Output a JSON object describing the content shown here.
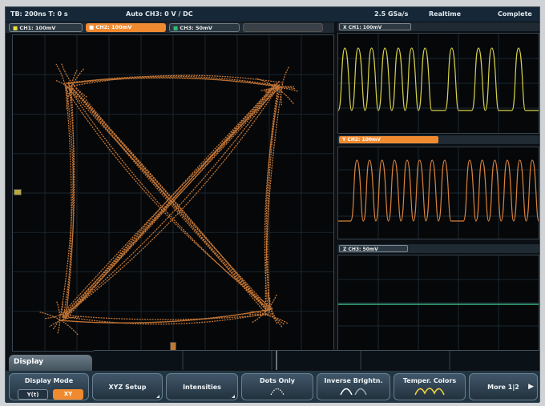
{
  "statusbar": {
    "timebase": "TB: 200ns  T: 0 s",
    "trigger": "Auto   CH3: 0 V  / DC",
    "samplerate": "2.5 GSa/s",
    "mode": "Realtime",
    "state": "Complete"
  },
  "channel_tabs": [
    {
      "label": "CH1: 100mV",
      "color": "#f0e040"
    },
    {
      "label": "CH2: 100mV",
      "color": "#f08a30"
    },
    {
      "label": "CH3: 50mV",
      "color": "#30c070"
    },
    {
      "label": "",
      "color": "#555555"
    }
  ],
  "panels": [
    {
      "label": "X   CH1: 100mV",
      "color": "#e8e040"
    },
    {
      "label": "Y   CH2: 100mV",
      "color": "#f08a30"
    },
    {
      "label": "Z   CH3: 50mV",
      "color": "#3ab080"
    }
  ],
  "menu": {
    "title": "Display",
    "display_mode": {
      "label": "Display Mode",
      "options": [
        "Y(t)",
        "XY"
      ],
      "selected": "XY"
    },
    "keys": [
      {
        "label": "XYZ Setup"
      },
      {
        "label": "Intensities"
      },
      {
        "label": "Dots Only"
      },
      {
        "label": "Inverse Brightn."
      },
      {
        "label": "Temper. Colors"
      },
      {
        "label": "More 1|2"
      }
    ]
  },
  "colors": {
    "xy_trace": "#d9823a",
    "ch1": "#e8e040",
    "ch2": "#f08a30",
    "ch3": "#3ab080"
  }
}
